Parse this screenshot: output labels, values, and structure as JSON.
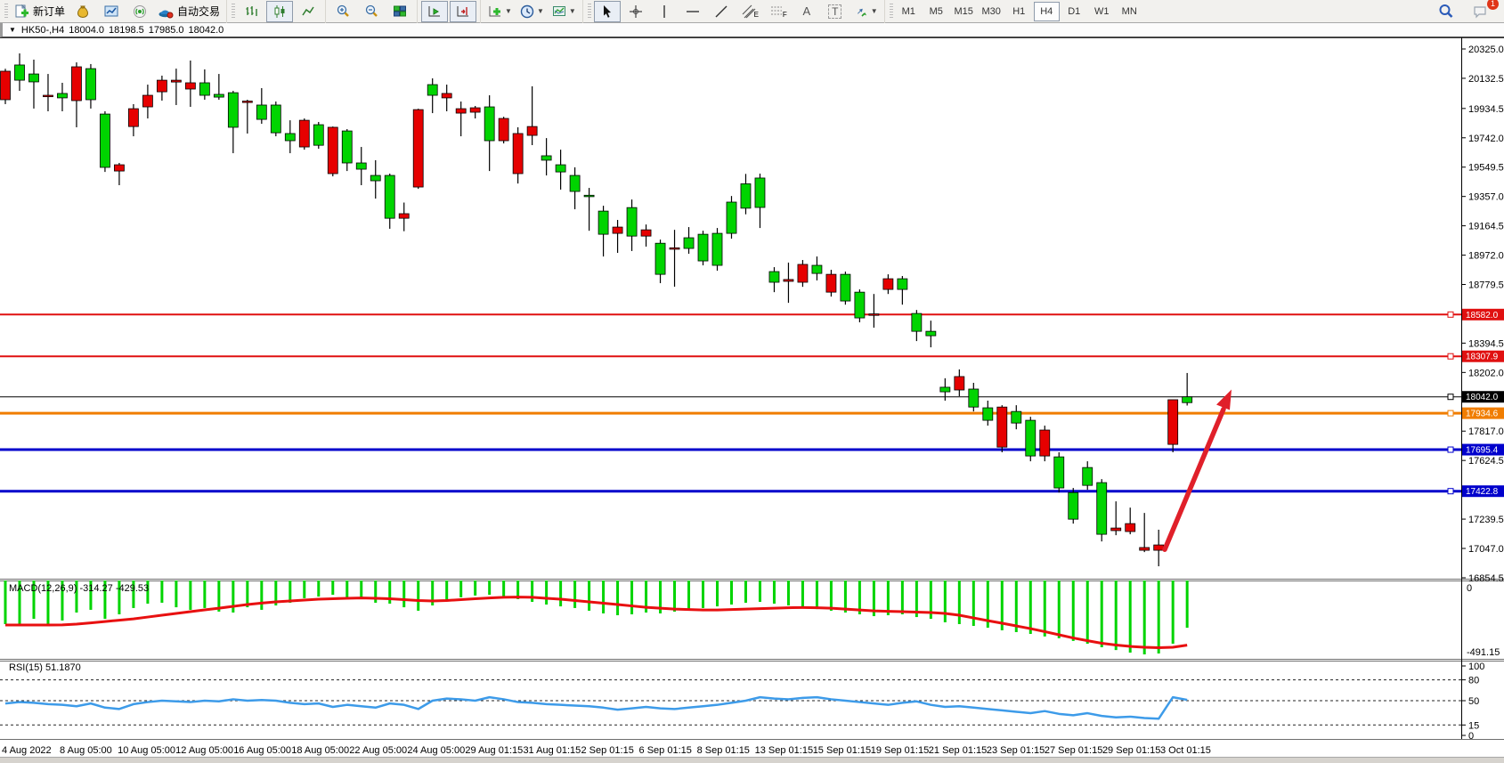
{
  "toolbar": {
    "new_order_label": "新订单",
    "auto_trading_label": "自动交易",
    "timeframes": [
      "M1",
      "M5",
      "M15",
      "M30",
      "H1",
      "H4",
      "D1",
      "W1",
      "MN"
    ],
    "active_timeframe": "H4",
    "notification_count": "1",
    "glyphs": {
      "text_tool": "A",
      "label_tool": "T",
      "channel_suffix": "E",
      "fibo_suffix": "F",
      "dropdown_caret": "▼"
    }
  },
  "titlebar": {
    "dropdown": "▼",
    "symbol_period": "HK50-,H4",
    "open": "18004.0",
    "high": "18198.5",
    "low": "17985.0",
    "close": "18042.0"
  },
  "macd_panel": {
    "label": "MACD(12,26,9)",
    "main": "-314.27",
    "signal": "-429.53",
    "axis_zero": "0",
    "axis_min": "-491.15"
  },
  "rsi_panel": {
    "label": "RSI(15)",
    "value": "51.1870",
    "axis_labels": [
      "100",
      "80",
      "50",
      "15",
      "0"
    ],
    "axis_values": [
      100,
      80,
      50,
      15,
      0
    ],
    "dashed_levels": [
      80,
      50,
      15
    ]
  },
  "chart_data": {
    "type": "candlestick",
    "title": "HK50-,H4",
    "period": "H4",
    "price_axis_ticks": [
      20325.0,
      20132.5,
      19934.5,
      19742.0,
      19549.5,
      19357.0,
      19164.5,
      18972.0,
      18779.5,
      18394.5,
      18202.0,
      17817.0,
      17624.5,
      17239.5,
      17047.0,
      16854.5
    ],
    "ylim": [
      16854.5,
      20325.0
    ],
    "x_labels": [
      "4 Aug 2022",
      "8 Aug 05:00",
      "10 Aug 05:00",
      "12 Aug 05:00",
      "16 Aug 05:00",
      "18 Aug 05:00",
      "22 Aug 05:00",
      "24 Aug 05:00",
      "29 Aug 01:15",
      "31 Aug 01:15",
      "2 Sep 01:15",
      "6 Sep 01:15",
      "8 Sep 01:15",
      "13 Sep 01:15",
      "15 Sep 01:15",
      "19 Sep 01:15",
      "21 Sep 01:15",
      "23 Sep 01:15",
      "27 Sep 01:15",
      "29 Sep 01:15",
      "3 Oct 01:15"
    ],
    "ohlc": [
      [
        20179,
        20195,
        19963,
        19992
      ],
      [
        20120,
        20296,
        20050,
        20220
      ],
      [
        20109,
        20255,
        19934,
        20161
      ],
      [
        20021,
        20161,
        19916,
        20015
      ],
      [
        20004,
        20103,
        19916,
        20033
      ],
      [
        20208,
        20237,
        19811,
        19986
      ],
      [
        19992,
        20226,
        19934,
        20196
      ],
      [
        19548,
        19916,
        19518,
        19898
      ],
      [
        19565,
        19577,
        19431,
        19524
      ],
      [
        19933,
        19963,
        19752,
        19816
      ],
      [
        20021,
        20091,
        19869,
        19945
      ],
      [
        20120,
        20150,
        19986,
        20044
      ],
      [
        20120,
        20196,
        19957,
        20108
      ],
      [
        20103,
        20249,
        19945,
        20062
      ],
      [
        20021,
        20191,
        19992,
        20103
      ],
      [
        20009,
        20161,
        19992,
        20027
      ],
      [
        19811,
        20050,
        19641,
        20038
      ],
      [
        19983,
        19992,
        19770,
        19977
      ],
      [
        19863,
        20068,
        19834,
        19957
      ],
      [
        19775,
        19980,
        19752,
        19957
      ],
      [
        19723,
        19857,
        19641,
        19770
      ],
      [
        19857,
        19869,
        19664,
        19682
      ],
      [
        19693,
        19846,
        19670,
        19828
      ],
      [
        19811,
        19816,
        19489,
        19507
      ],
      [
        19577,
        19799,
        19524,
        19787
      ],
      [
        19536,
        19682,
        19431,
        19577
      ],
      [
        19460,
        19595,
        19343,
        19495
      ],
      [
        19214,
        19507,
        19145,
        19495
      ],
      [
        19244,
        19317,
        19129,
        19214
      ],
      [
        19927,
        19933,
        19407,
        19419
      ],
      [
        20021,
        20132,
        19904,
        20091
      ],
      [
        20033,
        20091,
        19916,
        20004
      ],
      [
        19933,
        19980,
        19752,
        19904
      ],
      [
        19939,
        19951,
        19869,
        19910
      ],
      [
        19723,
        20021,
        19524,
        19945
      ],
      [
        19869,
        19880,
        19705,
        19723
      ],
      [
        19770,
        19811,
        19442,
        19507
      ],
      [
        19816,
        20080,
        19694,
        19758
      ],
      [
        19595,
        19740,
        19495,
        19624
      ],
      [
        19518,
        19664,
        19402,
        19565
      ],
      [
        19390,
        19548,
        19273,
        19495
      ],
      [
        19360,
        19413,
        19132,
        19365
      ],
      [
        19109,
        19296,
        18963,
        19261
      ],
      [
        19156,
        19203,
        18987,
        19115
      ],
      [
        19097,
        19337,
        18999,
        19284
      ],
      [
        19138,
        19173,
        19028,
        19097
      ],
      [
        18846,
        19074,
        18788,
        19050
      ],
      [
        19020,
        19138,
        18765,
        19016
      ],
      [
        19016,
        19156,
        18981,
        19086
      ],
      [
        18934,
        19132,
        18905,
        19109
      ],
      [
        18905,
        19150,
        18870,
        19115
      ],
      [
        19115,
        19360,
        19080,
        19320
      ],
      [
        19280,
        19505,
        19240,
        19440
      ],
      [
        19285,
        19507,
        19150,
        19478
      ],
      [
        18794,
        18893,
        18729,
        18864
      ],
      [
        18812,
        18923,
        18659,
        18800
      ],
      [
        18911,
        18940,
        18764,
        18794
      ],
      [
        18852,
        18963,
        18806,
        18905
      ],
      [
        18846,
        18876,
        18700,
        18729
      ],
      [
        18671,
        18864,
        18647,
        18846
      ],
      [
        18560,
        18747,
        18531,
        18729
      ],
      [
        18586,
        18717,
        18496,
        18580
      ],
      [
        18817,
        18846,
        18717,
        18747
      ],
      [
        18747,
        18835,
        18647,
        18817
      ],
      [
        18472,
        18612,
        18408,
        18589
      ],
      [
        18443,
        18542,
        18367,
        18472
      ],
      [
        18075,
        18164,
        18017,
        18105
      ],
      [
        18175,
        18222,
        18046,
        18087
      ],
      [
        17975,
        18134,
        17946,
        18093
      ],
      [
        17888,
        18017,
        17853,
        17970
      ],
      [
        17975,
        17987,
        17678,
        17712
      ],
      [
        17870,
        17987,
        17829,
        17946
      ],
      [
        17654,
        17911,
        17619,
        17888
      ],
      [
        17824,
        17853,
        17619,
        17654
      ],
      [
        17444,
        17678,
        17414,
        17648
      ],
      [
        17239,
        17444,
        17210,
        17414
      ],
      [
        17461,
        17619,
        17432,
        17578
      ],
      [
        17140,
        17502,
        17093,
        17479
      ],
      [
        17181,
        17356,
        17134,
        17164
      ],
      [
        17210,
        17315,
        17140,
        17158
      ],
      [
        17053,
        17280,
        17023,
        17035
      ],
      [
        17070,
        17170,
        16930,
        17035
      ],
      [
        18023,
        18023,
        17678,
        17730
      ],
      [
        18004,
        18198.5,
        17985,
        18042
      ]
    ],
    "hlines": [
      {
        "price": 18582.0,
        "label": "18582.0",
        "color": "#e01010",
        "width": 2
      },
      {
        "price": 18307.9,
        "label": "18307.9",
        "color": "#e01010",
        "width": 2
      },
      {
        "price": 18042.0,
        "label": "18042.0",
        "color": "#000000",
        "width": 1
      },
      {
        "price": 17934.6,
        "label": "17934.6",
        "color": "#f07d00",
        "width": 3
      },
      {
        "price": 17695.4,
        "label": "17695.4",
        "color": "#0000cc",
        "width": 3
      },
      {
        "price": 17422.8,
        "label": "17422.8",
        "color": "#0000cc",
        "width": 3
      }
    ],
    "arrow": {
      "from_price": 17040,
      "to_price": 18090,
      "color": "#e0202a"
    },
    "indicators": [
      {
        "name": "MACD",
        "params": "12,26,9",
        "last_main": -314.27,
        "last_signal": -429.53,
        "range": [
          0,
          -491.15
        ],
        "hist": [
          -290,
          -292,
          -255,
          -296,
          -266,
          -213,
          -195,
          -255,
          -225,
          -183,
          -154,
          -148,
          -178,
          -195,
          -183,
          -207,
          -213,
          -178,
          -195,
          -166,
          -148,
          -118,
          -107,
          -95,
          -112,
          -124,
          -148,
          -154,
          -178,
          -201,
          -166,
          -130,
          -112,
          -100,
          -95,
          -107,
          -124,
          -142,
          -160,
          -172,
          -183,
          -201,
          -219,
          -231,
          -225,
          -213,
          -219,
          -207,
          -195,
          -183,
          -172,
          -160,
          -148,
          -142,
          -154,
          -166,
          -178,
          -190,
          -201,
          -213,
          -225,
          -237,
          -231,
          -225,
          -243,
          -255,
          -278,
          -290,
          -302,
          -314,
          -331,
          -343,
          -355,
          -372,
          -384,
          -402,
          -420,
          -444,
          -462,
          -479,
          -491,
          -485,
          -420,
          -314.27
        ],
        "signal": [
          -296,
          -296,
          -296,
          -296,
          -295,
          -290,
          -282,
          -273,
          -264,
          -255,
          -243,
          -231,
          -219,
          -207,
          -195,
          -184,
          -172,
          -160,
          -150,
          -142,
          -136,
          -130,
          -124,
          -121,
          -118,
          -116,
          -118,
          -121,
          -127,
          -133,
          -136,
          -133,
          -127,
          -121,
          -116,
          -112,
          -110,
          -112,
          -118,
          -124,
          -133,
          -142,
          -151,
          -160,
          -169,
          -178,
          -184,
          -190,
          -193,
          -196,
          -196,
          -193,
          -190,
          -187,
          -184,
          -181,
          -180,
          -181,
          -184,
          -190,
          -196,
          -202,
          -205,
          -207,
          -210,
          -213,
          -219,
          -231,
          -249,
          -267,
          -284,
          -302,
          -320,
          -340,
          -361,
          -382,
          -400,
          -417,
          -429,
          -438,
          -444,
          -447,
          -444,
          -429.53
        ]
      },
      {
        "name": "RSI",
        "params": "15",
        "last_value": 51.187,
        "levels": [
          100,
          80,
          50,
          15,
          0
        ],
        "values": [
          46,
          48,
          47,
          45,
          44,
          42,
          46,
          40,
          38,
          45,
          48,
          50,
          49,
          48,
          50,
          49,
          52,
          50,
          51,
          50,
          47,
          45,
          46,
          41,
          44,
          42,
          40,
          46,
          44,
          38,
          50,
          53,
          52,
          50,
          55,
          52,
          48,
          47,
          45,
          44,
          43,
          42,
          40,
          37,
          39,
          41,
          39,
          38,
          40,
          42,
          44,
          47,
          50,
          55,
          53,
          52,
          54,
          55,
          52,
          50,
          48,
          46,
          44,
          47,
          49,
          44,
          41,
          42,
          40,
          38,
          36,
          34,
          32,
          35,
          31,
          29,
          32,
          28,
          26,
          27,
          25,
          24,
          55,
          51.2
        ]
      }
    ],
    "colors": {
      "up": "#00d400",
      "down": "#e60000",
      "macd_hist": "#00d400",
      "macd_signal": "#e81010",
      "rsi_line": "#3d9be9"
    }
  }
}
